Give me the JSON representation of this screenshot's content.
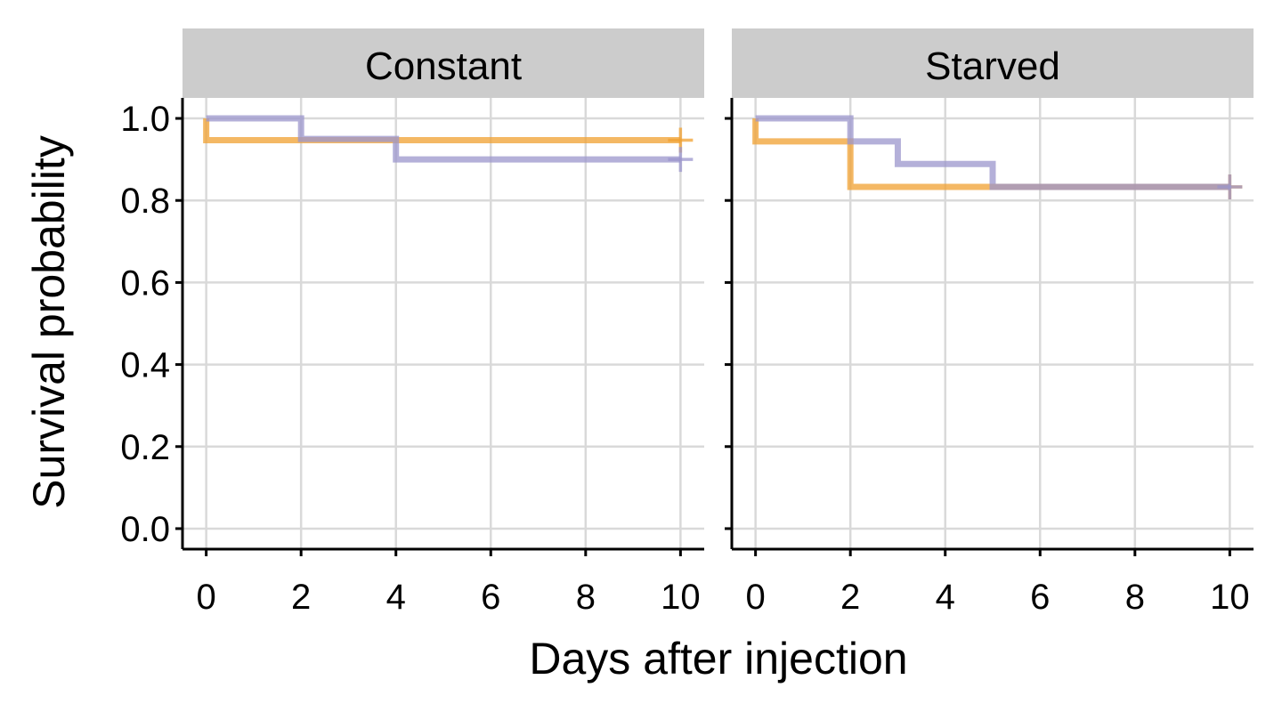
{
  "chart_data": {
    "type": "line",
    "step": true,
    "xlabel": "Days after injection",
    "ylabel": "Survival probability",
    "xlim": [
      -0.5,
      10.5
    ],
    "ylim": [
      -0.05,
      1.05
    ],
    "xticks": [
      "0",
      "2",
      "4",
      "6",
      "8",
      "10"
    ],
    "yticks": [
      "0.0",
      "0.2",
      "0.4",
      "0.6",
      "0.8",
      "1.0"
    ],
    "grid": true,
    "series_colors": [
      "#f0a030",
      "#9b96cc"
    ],
    "panels": [
      {
        "title": "Constant",
        "series": [
          {
            "color": "#f0a030",
            "x": [
              0,
              0,
              10
            ],
            "y": [
              1.0,
              0.947,
              0.947
            ],
            "censor": [
              [
                10,
                0.947
              ]
            ]
          },
          {
            "color": "#9b96cc",
            "x": [
              0,
              2,
              4,
              10
            ],
            "y": [
              1.0,
              0.95,
              0.9,
              0.9
            ],
            "censor": [
              [
                10,
                0.9
              ]
            ]
          }
        ]
      },
      {
        "title": "Starved",
        "series": [
          {
            "color": "#f0a030",
            "x": [
              0,
              0,
              2,
              5,
              10
            ],
            "y": [
              1.0,
              0.944,
              0.833,
              0.833,
              0.833
            ],
            "censor": [
              [
                10,
                0.833
              ]
            ]
          },
          {
            "color": "#9b96cc",
            "x": [
              0,
              2,
              3,
              5,
              10
            ],
            "y": [
              1.0,
              0.944,
              0.889,
              0.833,
              0.833
            ],
            "censor": [
              [
                10,
                0.833
              ]
            ]
          }
        ]
      }
    ]
  }
}
